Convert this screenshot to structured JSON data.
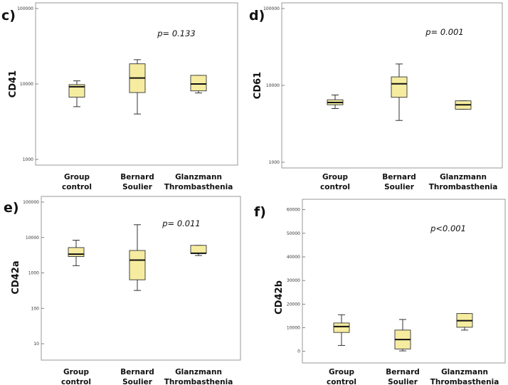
{
  "chart_data": [
    {
      "panel": "c)",
      "type": "boxplot",
      "ylabel": "CD41",
      "scale": "log",
      "ylim": [
        1000,
        100000
      ],
      "yticks": [
        1000,
        10000,
        100000
      ],
      "ytick_labels": [
        "1000",
        "10000",
        "100000"
      ],
      "categories": [
        [
          "Group",
          "control"
        ],
        [
          "Bernard",
          "Soulier"
        ],
        [
          "Glanzmann",
          "Thrombasthenia"
        ]
      ],
      "boxes": [
        {
          "min": 5000,
          "q1": 6700,
          "median": 9200,
          "q3": 9800,
          "max": 11000
        },
        {
          "min": 4000,
          "q1": 7700,
          "median": 12000,
          "q3": 18500,
          "max": 21000
        },
        {
          "min": 7600,
          "q1": 8100,
          "median": 10000,
          "q3": 13000,
          "max": 13000
        }
      ],
      "annotation": "p= 0.133",
      "box_color": "#f6eca0"
    },
    {
      "panel": "d)",
      "type": "boxplot",
      "ylabel": "CD61",
      "scale": "log",
      "ylim": [
        1000,
        100000
      ],
      "yticks": [
        1000,
        10000,
        100000
      ],
      "ytick_labels": [
        "1000",
        "10000",
        "100000"
      ],
      "categories": [
        [
          "Group",
          "control"
        ],
        [
          "Bernard",
          "Soulier"
        ],
        [
          "Glanzmann",
          "Thrombasthenia"
        ]
      ],
      "boxes": [
        {
          "min": 5000,
          "q1": 5600,
          "median": 6000,
          "q3": 6500,
          "max": 7500
        },
        {
          "min": 3500,
          "q1": 7000,
          "median": 10500,
          "q3": 12900,
          "max": 19000
        },
        {
          "min": 4900,
          "q1": 4900,
          "median": 5600,
          "q3": 6300,
          "max": 6300
        }
      ],
      "annotation": "p= 0.001",
      "box_color": "#f6eca0"
    },
    {
      "panel": "e)",
      "type": "boxplot",
      "ylabel": "CD42a",
      "scale": "log",
      "ylim": [
        5,
        100000
      ],
      "yticks": [
        10,
        100,
        1000,
        10000,
        100000
      ],
      "ytick_labels": [
        "10",
        "100",
        "1000",
        "10000",
        "100000"
      ],
      "categories": [
        [
          "Group",
          "control"
        ],
        [
          "Bernard",
          "Soulier"
        ],
        [
          "Glanzmann",
          "Thrombasthenia"
        ]
      ],
      "boxes": [
        {
          "min": 1600,
          "q1": 2900,
          "median": 3400,
          "q3": 5200,
          "max": 8400
        },
        {
          "min": 320,
          "q1": 640,
          "median": 2300,
          "q3": 4300,
          "max": 23000
        },
        {
          "min": 3100,
          "q1": 3600,
          "median": 3600,
          "q3": 6000,
          "max": 6000
        }
      ],
      "annotation": "p= 0.011",
      "box_color": "#f6eca0"
    },
    {
      "panel": "f)",
      "type": "boxplot",
      "ylabel": "CD42b",
      "scale": "linear",
      "ylim": [
        -2500,
        62000
      ],
      "yticks": [
        0,
        10000,
        20000,
        30000,
        40000,
        50000,
        60000
      ],
      "ytick_labels": [
        "0",
        "10000",
        "20000",
        "30000",
        "40000",
        "50000",
        "60000"
      ],
      "categories": [
        [
          "Group",
          "control"
        ],
        [
          "Bernard",
          "Soulier"
        ],
        [
          "Glanzmann",
          "Thrombasthenia"
        ]
      ],
      "boxes": [
        {
          "min": 2500,
          "q1": 8000,
          "median": 10500,
          "q3": 12000,
          "max": 15500
        },
        {
          "min": 200,
          "q1": 1000,
          "median": 5000,
          "q3": 9000,
          "max": 13500
        },
        {
          "min": 9000,
          "q1": 10200,
          "median": 13000,
          "q3": 16000,
          "max": 16000
        }
      ],
      "annotation": "p<0.001",
      "box_color": "#f6eca0"
    }
  ]
}
